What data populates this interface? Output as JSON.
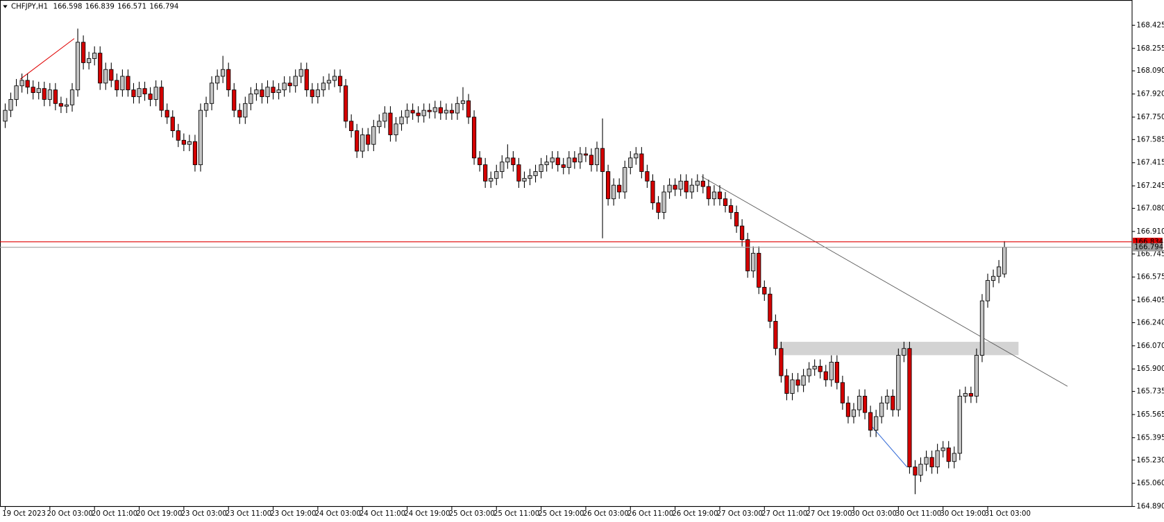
{
  "chart_data": {
    "type": "candlestick",
    "title": "CHFJPY,H1",
    "header_values": [
      166.598,
      166.839,
      166.571,
      166.794
    ],
    "bull_color": "#c4c4c4",
    "bear_color": "#d40000",
    "categories": [
      "19 Oct 2023",
      null,
      null,
      null,
      null,
      null,
      null,
      null,
      "20 Oct 03:00",
      null,
      null,
      null,
      null,
      null,
      null,
      null,
      "20 Oct 11:00",
      null,
      null,
      null,
      null,
      null,
      null,
      null,
      "20 Oct 19:00",
      null,
      null,
      null,
      null,
      null,
      null,
      null,
      "23 Oct 03:00",
      null,
      null,
      null,
      null,
      null,
      null,
      null,
      "23 Oct 11:00",
      null,
      null,
      null,
      null,
      null,
      null,
      null,
      "23 Oct 19:00",
      null,
      null,
      null,
      null,
      null,
      null,
      null,
      "24 Oct 03:00",
      null,
      null,
      null,
      null,
      null,
      null,
      null,
      "24 Oct 11:00",
      null,
      null,
      null,
      null,
      null,
      null,
      null,
      "24 Oct 19:00",
      null,
      null,
      null,
      null,
      null,
      null,
      null,
      "25 Oct 03:00",
      null,
      null,
      null,
      null,
      null,
      null,
      null,
      "25 Oct 11:00",
      null,
      null,
      null,
      null,
      null,
      null,
      null,
      "25 Oct 19:00",
      null,
      null,
      null,
      null,
      null,
      null,
      null,
      "26 Oct 03:00",
      null,
      null,
      null,
      null,
      null,
      null,
      null,
      "26 Oct 11:00",
      null,
      null,
      null,
      null,
      null,
      null,
      null,
      "26 Oct 19:00",
      null,
      null,
      null,
      null,
      null,
      null,
      null,
      "27 Oct 03:00",
      null,
      null,
      null,
      null,
      null,
      null,
      null,
      "27 Oct 11:00",
      null,
      null,
      null,
      null,
      null,
      null,
      null,
      "27 Oct 19:00",
      null,
      null,
      null,
      null,
      null,
      null,
      null,
      "30 Oct 03:00",
      null,
      null,
      null,
      null,
      null,
      null,
      null,
      "30 Oct 11:00",
      null,
      null,
      null,
      null,
      null,
      null,
      null,
      "30 Oct 19:00",
      null,
      null,
      null,
      null,
      null,
      null,
      null,
      "31 Oct 03:00",
      null,
      null,
      null
    ],
    "open": [
      167.72,
      167.8,
      167.88,
      167.98,
      168.02,
      167.97,
      167.93,
      167.96,
      167.88,
      167.95,
      167.85,
      167.83,
      167.84,
      167.95,
      168.3,
      168.15,
      168.18,
      168.22,
      168.0,
      168.1,
      168.02,
      167.95,
      168.05,
      167.95,
      167.9,
      167.96,
      167.92,
      167.88,
      167.97,
      167.8,
      167.75,
      167.65,
      167.58,
      167.55,
      167.57,
      167.4,
      167.8,
      167.85,
      168.0,
      168.05,
      168.1,
      167.95,
      167.8,
      167.75,
      167.85,
      167.92,
      167.95,
      167.9,
      167.97,
      167.93,
      167.95,
      168.0,
      167.98,
      168.05,
      168.1,
      167.95,
      167.9,
      167.95,
      168.0,
      168.02,
      168.05,
      167.98,
      167.72,
      167.65,
      167.5,
      167.62,
      167.55,
      167.68,
      167.72,
      167.78,
      167.62,
      167.7,
      167.75,
      167.8,
      167.78,
      167.76,
      167.8,
      167.79,
      167.82,
      167.78,
      167.8,
      167.78,
      167.85,
      167.87,
      167.75,
      167.45,
      167.4,
      167.28,
      167.3,
      167.35,
      167.42,
      167.45,
      167.4,
      167.28,
      167.3,
      167.32,
      167.35,
      167.4,
      167.42,
      167.45,
      167.4,
      167.38,
      167.45,
      167.42,
      167.48,
      167.47,
      167.4,
      167.52,
      167.35,
      167.15,
      167.25,
      167.2,
      167.38,
      167.45,
      167.48,
      167.35,
      167.28,
      167.12,
      167.05,
      167.2,
      167.25,
      167.22,
      167.28,
      167.2,
      167.25,
      167.28,
      167.24,
      167.15,
      167.2,
      167.15,
      167.1,
      167.05,
      166.95,
      166.85,
      166.62,
      166.75,
      166.5,
      166.45,
      166.25,
      166.05,
      165.85,
      165.72,
      165.82,
      165.78,
      165.85,
      165.9,
      165.92,
      165.88,
      165.82,
      165.95,
      165.8,
      165.65,
      165.55,
      165.6,
      165.7,
      165.58,
      165.45,
      165.55,
      165.65,
      165.7,
      165.6,
      166.0,
      166.05,
      165.18,
      165.12,
      165.2,
      165.25,
      165.18,
      165.3,
      165.32,
      165.22,
      165.28,
      165.7,
      165.72,
      165.7,
      166.0,
      166.4,
      166.55,
      166.58,
      166.598
    ],
    "high": [
      167.85,
      167.93,
      168.03,
      168.07,
      168.07,
      168.02,
      168.01,
      168.01,
      168.0,
      168.0,
      167.9,
      167.89,
      168.0,
      168.4,
      168.35,
      168.23,
      168.27,
      168.27,
      168.15,
      168.15,
      168.07,
      168.1,
      168.1,
      168.0,
      168.01,
      168.01,
      167.97,
      168.02,
      168.02,
      167.85,
      167.8,
      167.7,
      167.63,
      167.62,
      167.62,
      167.85,
      167.9,
      168.05,
      168.1,
      168.2,
      168.15,
      168.0,
      167.85,
      167.9,
      167.97,
      168.0,
      168.0,
      168.02,
      168.02,
      168.0,
      168.05,
      168.05,
      168.1,
      168.15,
      168.15,
      168.0,
      168.0,
      168.05,
      168.07,
      168.1,
      168.1,
      168.03,
      167.77,
      167.7,
      167.67,
      167.67,
      167.73,
      167.77,
      167.83,
      167.83,
      167.75,
      167.8,
      167.85,
      167.85,
      167.83,
      167.85,
      167.85,
      167.87,
      167.87,
      167.85,
      167.85,
      167.9,
      167.97,
      167.92,
      167.8,
      167.5,
      167.45,
      167.35,
      167.4,
      167.47,
      167.55,
      167.5,
      167.45,
      167.35,
      167.37,
      167.4,
      167.45,
      167.47,
      167.5,
      167.5,
      167.45,
      167.5,
      167.5,
      167.53,
      167.53,
      167.52,
      167.57,
      167.74,
      167.4,
      167.3,
      167.3,
      167.43,
      167.5,
      167.53,
      167.53,
      167.4,
      167.33,
      167.17,
      167.25,
      167.3,
      167.3,
      167.33,
      167.33,
      167.3,
      167.33,
      167.33,
      167.29,
      167.25,
      167.25,
      167.2,
      167.15,
      167.1,
      167.0,
      166.9,
      166.8,
      166.8,
      166.55,
      166.5,
      166.3,
      166.1,
      165.9,
      165.87,
      165.87,
      165.9,
      165.95,
      165.97,
      165.97,
      165.93,
      166.0,
      166.0,
      165.85,
      165.7,
      165.65,
      165.75,
      165.75,
      165.63,
      165.6,
      165.7,
      165.75,
      165.75,
      166.05,
      166.1,
      166.1,
      165.23,
      165.25,
      165.3,
      165.3,
      165.35,
      165.37,
      165.37,
      165.33,
      165.75,
      165.77,
      165.77,
      166.05,
      166.45,
      166.6,
      166.63,
      166.7,
      166.839
    ],
    "low": [
      167.67,
      167.75,
      167.83,
      167.93,
      167.92,
      167.88,
      167.88,
      167.83,
      167.83,
      167.8,
      167.78,
      167.78,
      167.79,
      167.9,
      168.1,
      168.1,
      168.13,
      167.95,
      167.95,
      167.97,
      167.9,
      167.9,
      167.9,
      167.85,
      167.85,
      167.87,
      167.83,
      167.83,
      167.75,
      167.7,
      167.6,
      167.53,
      167.5,
      167.5,
      167.35,
      167.35,
      167.75,
      167.8,
      167.95,
      168.0,
      167.9,
      167.75,
      167.7,
      167.7,
      167.8,
      167.87,
      167.85,
      167.85,
      167.88,
      167.88,
      167.9,
      167.93,
      167.93,
      168.0,
      167.9,
      167.85,
      167.85,
      167.9,
      167.95,
      167.97,
      167.93,
      167.67,
      167.6,
      167.45,
      167.45,
      167.5,
      167.5,
      167.63,
      167.67,
      167.57,
      167.57,
      167.65,
      167.7,
      167.73,
      167.71,
      167.71,
      167.74,
      167.74,
      167.73,
      167.73,
      167.73,
      167.73,
      167.8,
      167.7,
      167.4,
      167.35,
      167.23,
      167.23,
      167.25,
      167.3,
      167.37,
      167.35,
      167.23,
      167.23,
      167.25,
      167.27,
      167.3,
      167.35,
      167.37,
      167.35,
      167.33,
      167.33,
      167.37,
      167.37,
      167.42,
      167.35,
      167.35,
      166.86,
      167.1,
      167.1,
      167.15,
      167.15,
      167.33,
      167.4,
      167.3,
      167.23,
      167.07,
      167.0,
      167.0,
      167.15,
      167.17,
      167.17,
      167.15,
      167.15,
      167.2,
      167.19,
      167.1,
      167.1,
      167.1,
      167.05,
      167.0,
      166.9,
      166.8,
      166.57,
      166.57,
      166.45,
      166.4,
      166.2,
      166.0,
      165.8,
      165.67,
      165.67,
      165.73,
      165.73,
      165.8,
      165.85,
      165.83,
      165.77,
      165.77,
      165.75,
      165.6,
      165.5,
      165.5,
      165.55,
      165.53,
      165.4,
      165.4,
      165.5,
      165.6,
      165.55,
      165.55,
      165.95,
      165.13,
      164.98,
      165.07,
      165.15,
      165.13,
      165.13,
      165.25,
      165.17,
      165.17,
      165.23,
      165.65,
      165.65,
      165.65,
      165.95,
      166.35,
      166.5,
      166.53,
      166.571
    ],
    "close": [
      167.8,
      167.88,
      167.98,
      168.02,
      167.97,
      167.93,
      167.96,
      167.88,
      167.95,
      167.85,
      167.83,
      167.84,
      167.95,
      168.3,
      168.15,
      168.18,
      168.22,
      168.0,
      168.1,
      168.02,
      167.95,
      168.05,
      167.95,
      167.9,
      167.96,
      167.92,
      167.88,
      167.97,
      167.8,
      167.75,
      167.65,
      167.58,
      167.55,
      167.57,
      167.4,
      167.8,
      167.85,
      168.0,
      168.05,
      168.1,
      167.95,
      167.8,
      167.75,
      167.85,
      167.92,
      167.95,
      167.9,
      167.97,
      167.93,
      167.95,
      168.0,
      167.98,
      168.05,
      168.1,
      167.95,
      167.9,
      167.95,
      168.0,
      168.02,
      168.05,
      167.98,
      167.72,
      167.65,
      167.5,
      167.62,
      167.55,
      167.68,
      167.72,
      167.78,
      167.62,
      167.7,
      167.75,
      167.8,
      167.78,
      167.76,
      167.8,
      167.79,
      167.82,
      167.78,
      167.8,
      167.78,
      167.85,
      167.87,
      167.75,
      167.45,
      167.4,
      167.28,
      167.3,
      167.35,
      167.42,
      167.45,
      167.4,
      167.28,
      167.3,
      167.32,
      167.35,
      167.4,
      167.42,
      167.45,
      167.4,
      167.38,
      167.45,
      167.42,
      167.48,
      167.47,
      167.4,
      167.52,
      167.35,
      167.15,
      167.25,
      167.2,
      167.38,
      167.45,
      167.48,
      167.35,
      167.28,
      167.12,
      167.05,
      167.2,
      167.25,
      167.22,
      167.28,
      167.2,
      167.25,
      167.28,
      167.24,
      167.15,
      167.2,
      167.15,
      167.1,
      167.05,
      166.95,
      166.85,
      166.62,
      166.75,
      166.5,
      166.45,
      166.25,
      166.05,
      165.85,
      165.72,
      165.82,
      165.78,
      165.85,
      165.9,
      165.92,
      165.88,
      165.82,
      165.95,
      165.8,
      165.65,
      165.55,
      165.6,
      165.7,
      165.58,
      165.45,
      165.55,
      165.65,
      165.7,
      165.6,
      166.0,
      166.05,
      165.18,
      165.12,
      165.2,
      165.25,
      165.18,
      165.3,
      165.32,
      165.22,
      165.28,
      165.7,
      165.72,
      165.7,
      166.0,
      166.4,
      166.55,
      166.58,
      166.65,
      166.794
    ],
    "ylim": [
      164.89,
      168.594
    ],
    "yticks": [
      168.425,
      168.255,
      {
        "value": 168.09,
        "label": "168.090"
      },
      {
        "value": 167.92,
        "label": "167.920"
      },
      {
        "value": 167.75,
        "label": "167.750"
      },
      167.585,
      167.415,
      167.245,
      {
        "value": 167.08,
        "label": "167.080"
      },
      {
        "value": 166.91,
        "label": "166.910"
      },
      166.745,
      166.575,
      166.405,
      {
        "value": 166.24,
        "label": "166.240"
      },
      {
        "value": 166.07,
        "label": "166.070"
      },
      {
        "value": 165.9,
        "label": "165.900"
      },
      165.735,
      165.565,
      165.395,
      {
        "value": 165.23,
        "label": "165.230"
      },
      {
        "value": 165.06,
        "label": "165.060"
      },
      {
        "value": 164.89,
        "label": "164.890"
      }
    ],
    "price_lines": [
      {
        "value": 166.834,
        "color": "#e00000"
      },
      {
        "value": 166.794,
        "color": "#a0a0a0"
      }
    ]
  }
}
